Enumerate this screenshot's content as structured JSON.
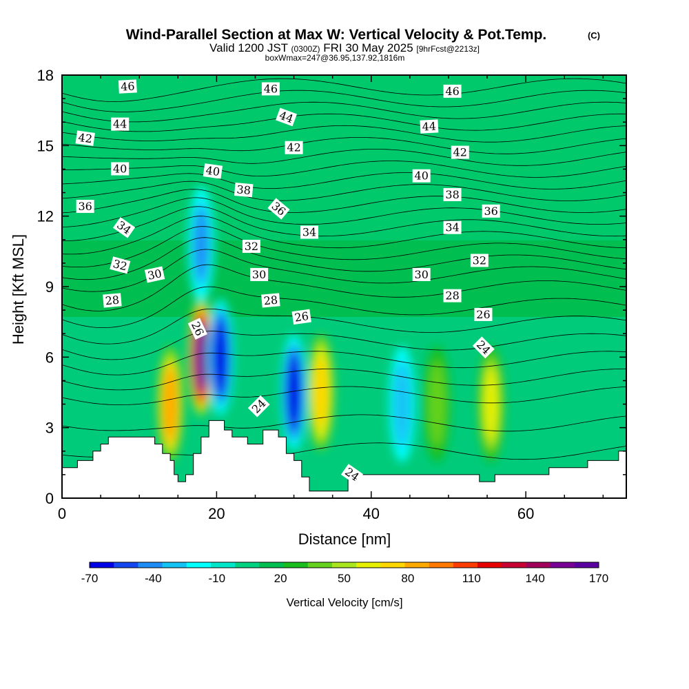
{
  "figure": {
    "title": "Wind-Parallel Section at Max W: Vertical Velocity & Pot.Temp.",
    "title_mark": "(C)",
    "subtitle_prefix": "Valid 1200 JST",
    "subtitle_zulu": "(0300Z)",
    "subtitle_date": "FRI 30 May 2025",
    "subtitle_fcst": "[9hrFcst@2213z]",
    "subtitle2": "boxWmax=247@36.95,137.92,1816m"
  },
  "chart_data": {
    "type": "heatmap",
    "xlabel": "Distance [nm]",
    "ylabel": "Height [Kft MSL]",
    "xlim": [
      0,
      73
    ],
    "ylim": [
      0,
      18
    ],
    "xticks": [
      0,
      20,
      40,
      60
    ],
    "yticks": [
      0,
      3,
      6,
      9,
      12,
      15,
      18
    ],
    "colorbar": {
      "label": "Vertical Velocity [cm/s]",
      "tick_labels": [
        "-70",
        "-40",
        "-10",
        "20",
        "50",
        "80",
        "110",
        "140",
        "170"
      ],
      "colors": [
        "#0000e6",
        "#1447f0",
        "#1e8cf5",
        "#14c3f5",
        "#00ffff",
        "#00e6c8",
        "#00d282",
        "#00be50",
        "#19be1e",
        "#64d21e",
        "#aae61e",
        "#e6f000",
        "#ffd700",
        "#ffaa00",
        "#ff7800",
        "#ff3c00",
        "#e60000",
        "#c80032",
        "#a0005a",
        "#780096",
        "#5a00a0"
      ]
    },
    "vertical_velocity_cells": [
      {
        "x": 14,
        "y": 4,
        "w": 90
      },
      {
        "x": 18,
        "y": 6,
        "w": 160
      },
      {
        "x": 20.5,
        "y": 6,
        "w": -70
      },
      {
        "x": 30,
        "y": 4.5,
        "w": -70
      },
      {
        "x": 33.5,
        "y": 4.5,
        "w": 75
      },
      {
        "x": 18,
        "y": 10.8,
        "w": -45
      },
      {
        "x": 48.5,
        "y": 4,
        "w": 40
      },
      {
        "x": 55.5,
        "y": 4,
        "w": 65
      },
      {
        "x": 44,
        "y": 4,
        "w": -35
      }
    ],
    "terrain_height_kft": [
      [
        0,
        1.3
      ],
      [
        2,
        1.3
      ],
      [
        2,
        1.6
      ],
      [
        4,
        1.6
      ],
      [
        4,
        2.0
      ],
      [
        5,
        2.0
      ],
      [
        5,
        2.3
      ],
      [
        6,
        2.3
      ],
      [
        6,
        2.6
      ],
      [
        12,
        2.6
      ],
      [
        12,
        2.3
      ],
      [
        13,
        2.3
      ],
      [
        13,
        1.9
      ],
      [
        14,
        1.9
      ],
      [
        14,
        1.6
      ],
      [
        14.5,
        1.6
      ],
      [
        14.5,
        1.0
      ],
      [
        15,
        1.0
      ],
      [
        15,
        0.7
      ],
      [
        16,
        0.7
      ],
      [
        16,
        1.0
      ],
      [
        17,
        1.0
      ],
      [
        17,
        1.9
      ],
      [
        18,
        1.9
      ],
      [
        18,
        2.6
      ],
      [
        19,
        2.6
      ],
      [
        19,
        3.3
      ],
      [
        21,
        3.3
      ],
      [
        21,
        2.9
      ],
      [
        22,
        2.9
      ],
      [
        22,
        2.6
      ],
      [
        24,
        2.6
      ],
      [
        24,
        2.3
      ],
      [
        26,
        2.3
      ],
      [
        26,
        2.9
      ],
      [
        28,
        2.9
      ],
      [
        28,
        2.6
      ],
      [
        29,
        2.6
      ],
      [
        29,
        1.9
      ],
      [
        30,
        1.9
      ],
      [
        30,
        1.6
      ],
      [
        31,
        1.6
      ],
      [
        31,
        0.9
      ],
      [
        32,
        0.9
      ],
      [
        32,
        0.3
      ],
      [
        34,
        0.3
      ],
      [
        34,
        0.3
      ],
      [
        37,
        0.3
      ],
      [
        37,
        0.9
      ],
      [
        38,
        0.9
      ],
      [
        38,
        1.0
      ],
      [
        54,
        1.0
      ],
      [
        54,
        0.7
      ],
      [
        56,
        0.7
      ],
      [
        56,
        1.0
      ],
      [
        63,
        1.0
      ],
      [
        63,
        1.3
      ],
      [
        68,
        1.3
      ],
      [
        68,
        1.6
      ],
      [
        72,
        1.6
      ],
      [
        72,
        2.0
      ],
      [
        73,
        2.0
      ]
    ],
    "potential_temperature_labels": [
      {
        "text": "46",
        "x": 8.5,
        "y": 17.5,
        "rot": -3
      },
      {
        "text": "46",
        "x": 27,
        "y": 17.4,
        "rot": 0
      },
      {
        "text": "46",
        "x": 50.5,
        "y": 17.3,
        "rot": 0
      },
      {
        "text": "44",
        "x": 7.5,
        "y": 15.9,
        "rot": 0
      },
      {
        "text": "44",
        "x": 29,
        "y": 16.2,
        "rot": 20
      },
      {
        "text": "44",
        "x": 47.5,
        "y": 15.8,
        "rot": -3
      },
      {
        "text": "42",
        "x": 3,
        "y": 15.3,
        "rot": 8
      },
      {
        "text": "42",
        "x": 30,
        "y": 14.9,
        "rot": 0
      },
      {
        "text": "42",
        "x": 51.5,
        "y": 14.7,
        "rot": 0
      },
      {
        "text": "40",
        "x": 7.5,
        "y": 14.0,
        "rot": 0
      },
      {
        "text": "40",
        "x": 19.5,
        "y": 13.9,
        "rot": 8
      },
      {
        "text": "40",
        "x": 46.5,
        "y": 13.7,
        "rot": 0
      },
      {
        "text": "38",
        "x": 23.5,
        "y": 13.1,
        "rot": 5
      },
      {
        "text": "38",
        "x": 50.5,
        "y": 12.9,
        "rot": 0
      },
      {
        "text": "36",
        "x": 3,
        "y": 12.4,
        "rot": 0
      },
      {
        "text": "36",
        "x": 28,
        "y": 12.3,
        "rot": 40
      },
      {
        "text": "36",
        "x": 55.5,
        "y": 12.2,
        "rot": 0
      },
      {
        "text": "34",
        "x": 8,
        "y": 11.5,
        "rot": 35
      },
      {
        "text": "34",
        "x": 32,
        "y": 11.3,
        "rot": 0
      },
      {
        "text": "34",
        "x": 50.5,
        "y": 11.5,
        "rot": 0
      },
      {
        "text": "32",
        "x": 7.5,
        "y": 9.9,
        "rot": 15
      },
      {
        "text": "32",
        "x": 24.5,
        "y": 10.7,
        "rot": 0
      },
      {
        "text": "32",
        "x": 54,
        "y": 10.1,
        "rot": 0
      },
      {
        "text": "30",
        "x": 12,
        "y": 9.5,
        "rot": -12
      },
      {
        "text": "30",
        "x": 25.5,
        "y": 9.5,
        "rot": 0
      },
      {
        "text": "30",
        "x": 46.5,
        "y": 9.5,
        "rot": 0
      },
      {
        "text": "28",
        "x": 6.5,
        "y": 8.4,
        "rot": -5
      },
      {
        "text": "28",
        "x": 27,
        "y": 8.4,
        "rot": -5
      },
      {
        "text": "28",
        "x": 50.5,
        "y": 8.6,
        "rot": 0
      },
      {
        "text": "26",
        "x": 17.5,
        "y": 7.2,
        "rot": 65
      },
      {
        "text": "26",
        "x": 31,
        "y": 7.7,
        "rot": -8
      },
      {
        "text": "26",
        "x": 54.5,
        "y": 7.8,
        "rot": 0
      },
      {
        "text": "24",
        "x": 25.5,
        "y": 3.9,
        "rot": -45
      },
      {
        "text": "24",
        "x": 37.5,
        "y": 1.0,
        "rot": 35
      },
      {
        "text": "24",
        "x": 54.5,
        "y": 6.4,
        "rot": 45
      }
    ]
  }
}
